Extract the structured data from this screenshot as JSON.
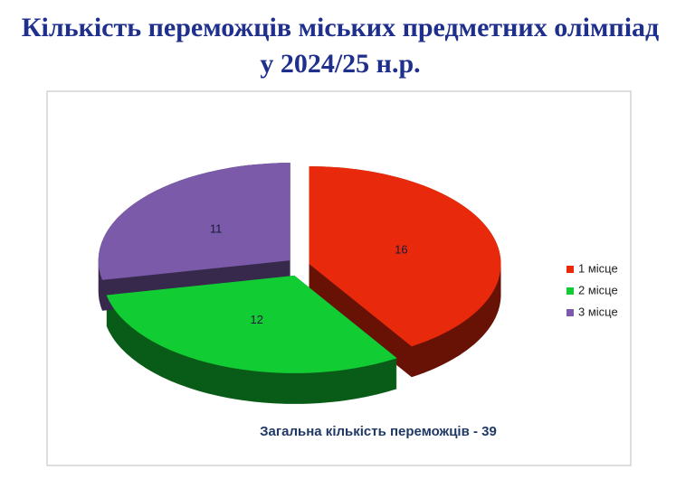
{
  "chart_data": {
    "type": "pie",
    "title": [
      "Кількість переможців міських  предметних олімпіад",
      "у 2024/25 н.р."
    ],
    "categories": [
      "1 місце",
      "2 місце",
      "3 місце"
    ],
    "values": [
      16,
      12,
      11
    ],
    "colors": [
      "#e8290b",
      "#12cc34",
      "#7b5aa9"
    ],
    "legend": "right",
    "annotation": "Загальна кількість переможців - 39"
  }
}
